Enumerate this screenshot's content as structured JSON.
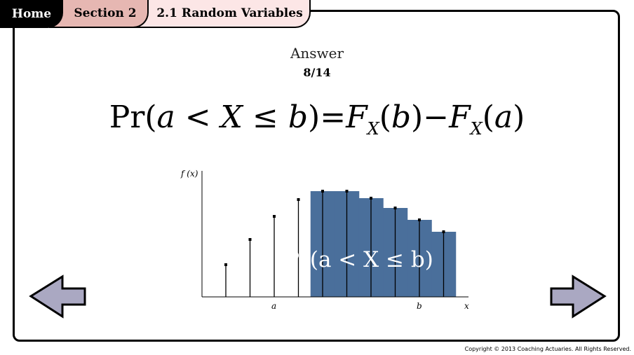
{
  "tabs": {
    "home": "Home",
    "section": "Section 2",
    "topic": "2.1 Random Variables"
  },
  "heading": {
    "title": "Answer",
    "page": "8/14"
  },
  "formula": {
    "lhs_fn": "Pr",
    "a": "a",
    "lt": "<",
    "X": "X",
    "le": "≤",
    "b": "b",
    "eq": "=",
    "F": "F",
    "sub": "X",
    "minus": "−"
  },
  "chart_data": {
    "type": "bar",
    "ylabel": "f (x)",
    "xlabel": "x",
    "tick_labels": {
      "a": "a",
      "b": "b"
    },
    "annotation": "Pr(a < X ≤ b)",
    "values": [
      46,
      82,
      115,
      139,
      151,
      151,
      141,
      127,
      110,
      93
    ],
    "shaded_range": [
      4,
      9
    ],
    "shade_color": "#4a6f9b"
  },
  "nav": {
    "prev": "left-arrow",
    "next": "right-arrow",
    "arrow_color": "#aaa8c2"
  },
  "copyright": "Copyright © 2013 Coaching Actuaries.  All Rights Reserved."
}
